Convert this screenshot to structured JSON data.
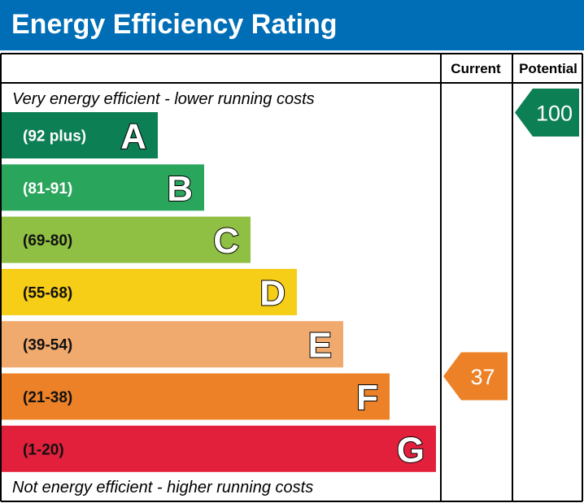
{
  "title": "Energy Efficiency Rating",
  "chart_data": {
    "type": "table",
    "title": "Energy Efficiency Rating",
    "columns": [
      "Current",
      "Potential"
    ],
    "top_note": "Very energy efficient - lower running costs",
    "bottom_note": "Not energy efficient - higher running costs",
    "bands": [
      {
        "letter": "A",
        "range": "(92 plus)",
        "color": "#0d7f55",
        "text_color": "#ffffff"
      },
      {
        "letter": "B",
        "range": "(81-91)",
        "color": "#2aa55c",
        "text_color": "#ffffff"
      },
      {
        "letter": "C",
        "range": "(69-80)",
        "color": "#8fbf43",
        "text_color": "#111111"
      },
      {
        "letter": "D",
        "range": "(55-68)",
        "color": "#f6cd17",
        "text_color": "#111111"
      },
      {
        "letter": "E",
        "range": "(39-54)",
        "color": "#f1aa6e",
        "text_color": "#111111"
      },
      {
        "letter": "F",
        "range": "(21-38)",
        "color": "#ec8127",
        "text_color": "#111111"
      },
      {
        "letter": "G",
        "range": "(1-20)",
        "color": "#e2203c",
        "text_color": "#111111"
      }
    ],
    "current": {
      "value": 37,
      "band": "F",
      "color": "#ec8127"
    },
    "potential": {
      "value": 100,
      "band": "A",
      "color": "#0d7f55"
    }
  }
}
